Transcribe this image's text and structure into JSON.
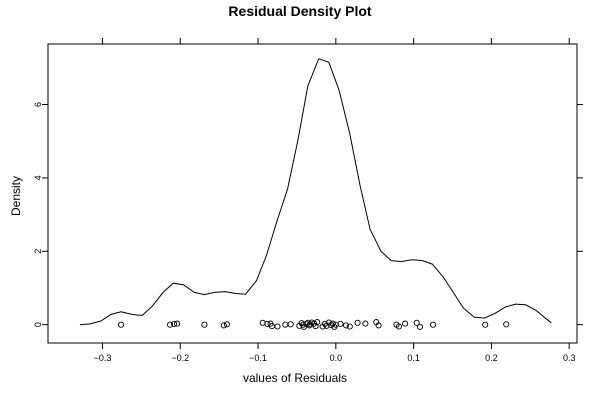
{
  "chart_data": {
    "type": "line",
    "title": "Residual Density Plot",
    "xlabel": "values of Residuals",
    "ylabel": "Density",
    "xlim": [
      -0.37,
      0.31
    ],
    "ylim": [
      -0.5,
      7.65
    ],
    "x_ticks": [
      -0.3,
      -0.2,
      -0.1,
      0.0,
      0.1,
      0.2,
      0.3
    ],
    "x_tick_labels": [
      "−0.3",
      "−0.2",
      "−0.1",
      "0.0",
      "0.1",
      "0.2",
      "0.3"
    ],
    "y_ticks": [
      0,
      2,
      4,
      6
    ],
    "y_tick_labels": [
      "0",
      "2",
      "4",
      "6"
    ],
    "grid": false,
    "ticks_on_all_sides": true,
    "series": [
      {
        "type": "line",
        "x": [
          -0.329,
          -0.316,
          -0.302,
          -0.289,
          -0.276,
          -0.262,
          -0.249,
          -0.236,
          -0.222,
          -0.209,
          -0.196,
          -0.182,
          -0.169,
          -0.156,
          -0.142,
          -0.129,
          -0.116,
          -0.102,
          -0.089,
          -0.076,
          -0.062,
          -0.049,
          -0.036,
          -0.022,
          -0.009,
          0.004,
          0.018,
          0.031,
          0.044,
          0.058,
          0.071,
          0.084,
          0.098,
          0.111,
          0.124,
          0.138,
          0.151,
          0.164,
          0.178,
          0.191,
          0.204,
          0.218,
          0.231,
          0.244,
          0.258,
          0.271,
          0.277
        ],
        "values": [
          0.0,
          0.02,
          0.1,
          0.28,
          0.35,
          0.28,
          0.25,
          0.5,
          0.88,
          1.13,
          1.09,
          0.88,
          0.82,
          0.88,
          0.9,
          0.85,
          0.83,
          1.2,
          1.9,
          2.8,
          3.7,
          5.0,
          6.5,
          7.25,
          7.15,
          6.4,
          5.2,
          3.8,
          2.6,
          2.0,
          1.75,
          1.72,
          1.77,
          1.75,
          1.65,
          1.3,
          0.88,
          0.45,
          0.2,
          0.18,
          0.3,
          0.48,
          0.56,
          0.54,
          0.38,
          0.15,
          0.05
        ]
      },
      {
        "type": "rug",
        "x": [
          -0.276,
          -0.213,
          -0.208,
          -0.204,
          -0.169,
          -0.144,
          -0.14,
          -0.094,
          -0.088,
          -0.084,
          -0.082,
          -0.075,
          -0.065,
          -0.058,
          -0.047,
          -0.044,
          -0.042,
          -0.041,
          -0.038,
          -0.036,
          -0.034,
          -0.033,
          -0.031,
          -0.028,
          -0.026,
          -0.024,
          -0.017,
          -0.014,
          -0.012,
          -0.009,
          -0.006,
          -0.004,
          -0.002,
          0.0,
          0.006,
          0.013,
          0.018,
          0.028,
          0.038,
          0.052,
          0.055,
          0.078,
          0.081,
          0.089,
          0.104,
          0.108,
          0.125,
          0.192,
          0.219
        ],
        "values": [
          0.0,
          0.0,
          0.02,
          0.03,
          0.0,
          -0.02,
          0.01,
          0.05,
          0.02,
          0.03,
          -0.04,
          -0.05,
          0.0,
          0.01,
          -0.03,
          0.04,
          0.0,
          -0.06,
          0.02,
          0.05,
          -0.02,
          0.01,
          0.06,
          0.03,
          -0.04,
          0.07,
          -0.05,
          0.02,
          -0.03,
          0.06,
          -0.01,
          0.03,
          -0.06,
          0.0,
          0.02,
          -0.02,
          -0.05,
          0.05,
          0.03,
          0.07,
          -0.02,
          0.0,
          -0.05,
          0.03,
          0.05,
          -0.06,
          0.0,
          0.0,
          0.01
        ]
      }
    ]
  }
}
